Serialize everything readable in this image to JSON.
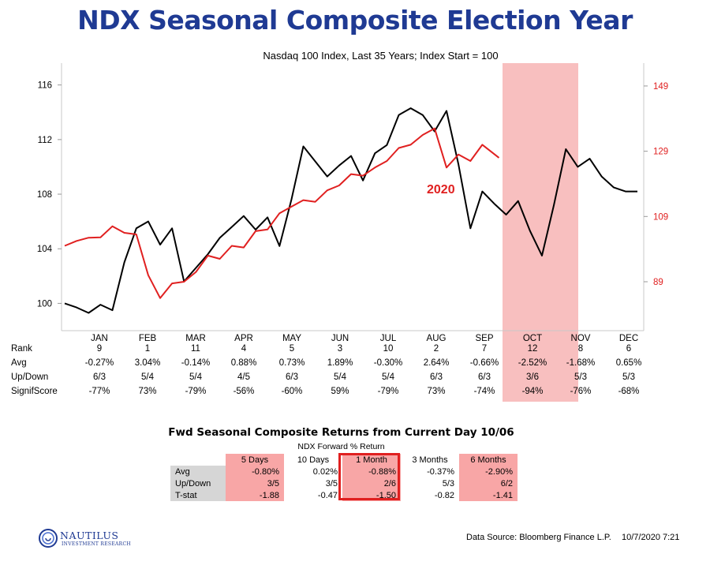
{
  "chart_data": {
    "type": "line",
    "title": "NDX Seasonal Composite Election Year",
    "subtitle": "Nasdaq 100 Index, Last 35 Years; Index Start = 100",
    "xlabel": "",
    "ylabel": "",
    "months": [
      "JAN",
      "FEB",
      "MAR",
      "APR",
      "MAY",
      "JUN",
      "JUL",
      "AUG",
      "SEP",
      "OCT",
      "NOV",
      "DEC"
    ],
    "highlight_month": "OCT",
    "annotation": "2020",
    "y_left": {
      "ylim": [
        98,
        117.6
      ],
      "ticks": [
        100,
        104,
        108,
        112,
        116
      ]
    },
    "y_right": {
      "ylim": [
        74,
        156
      ],
      "ticks": [
        89,
        109,
        129,
        149
      ],
      "color": "#e02020"
    },
    "series": [
      {
        "color": "#000000",
        "axis": "left",
        "x": [
          0,
          0.25,
          0.5,
          0.75,
          1,
          1.25,
          1.5,
          1.75,
          2,
          2.25,
          2.5,
          2.75,
          3,
          3.25,
          3.5,
          3.75,
          4,
          4.25,
          4.5,
          4.75,
          5,
          5.25,
          5.5,
          5.75,
          6,
          6.25,
          6.5,
          6.75,
          7,
          7.25,
          7.5,
          7.75,
          8,
          8.25,
          8.5,
          8.75,
          9,
          9.25,
          9.5,
          9.75,
          10,
          10.25,
          10.5,
          10.75,
          11,
          11.25,
          11.5,
          11.75,
          12
        ],
        "values": [
          100.0,
          99.7,
          99.3,
          99.9,
          99.5,
          103.0,
          105.5,
          106.0,
          104.3,
          105.5,
          101.6,
          102.6,
          103.6,
          104.8,
          105.6,
          106.4,
          105.4,
          106.3,
          104.2,
          107.6,
          111.5,
          110.4,
          109.3,
          110.1,
          110.8,
          109.0,
          111.0,
          111.6,
          113.8,
          114.3,
          113.8,
          112.6,
          114.1,
          110.2,
          105.5,
          108.2,
          107.3,
          106.5,
          107.5,
          105.3,
          103.5,
          107.2,
          111.3,
          110.0,
          110.6,
          109.3,
          108.5,
          108.2,
          108.2
        ]
      },
      {
        "color": "#e02020",
        "axis": "right",
        "x": [
          0,
          0.25,
          0.5,
          0.75,
          1,
          1.25,
          1.5,
          1.75,
          2,
          2.25,
          2.5,
          2.75,
          3,
          3.25,
          3.5,
          3.75,
          4,
          4.25,
          4.5,
          4.75,
          5,
          5.25,
          5.5,
          5.75,
          6,
          6.25,
          6.5,
          6.75,
          7,
          7.25,
          7.5,
          7.75,
          8,
          8.25,
          8.5,
          8.75,
          9.1
        ],
        "values": [
          100,
          101.5,
          102.5,
          102.6,
          106,
          104,
          103.5,
          91,
          84,
          88.5,
          89,
          92,
          97,
          96,
          100,
          99.5,
          104.5,
          105,
          110,
          112,
          114,
          113.5,
          117,
          118.5,
          122,
          121.5,
          124,
          126,
          130,
          131,
          134,
          136,
          124,
          128,
          126,
          131,
          127
        ]
      }
    ],
    "stats_table": {
      "rows": [
        {
          "label": "Rank",
          "values": [
            "9",
            "1",
            "11",
            "4",
            "5",
            "3",
            "10",
            "2",
            "7",
            "12",
            "8",
            "6"
          ]
        },
        {
          "label": "Avg",
          "values": [
            "-0.27%",
            "3.04%",
            "-0.14%",
            "0.88%",
            "0.73%",
            "1.89%",
            "-0.30%",
            "2.64%",
            "-0.66%",
            "-2.52%",
            "-1.68%",
            "0.65%"
          ]
        },
        {
          "label": "Up/Down",
          "values": [
            "6/3",
            "5/4",
            "5/4",
            "4/5",
            "6/3",
            "5/4",
            "5/4",
            "6/3",
            "6/3",
            "3/6",
            "5/3",
            "5/3"
          ]
        },
        {
          "label": "SignifScore",
          "values": [
            "-77%",
            "73%",
            "-79%",
            "-56%",
            "-60%",
            "59%",
            "-79%",
            "73%",
            "-74%",
            "-94%",
            "-76%",
            "-68%"
          ]
        }
      ]
    }
  },
  "fwd_table": {
    "title": "Fwd Seasonal Composite Returns from Current Day 10/06",
    "subtitle": "NDX Forward % Return",
    "columns": [
      "5 Days",
      "10 Days",
      "1 Month",
      "3 Months",
      "6 Months"
    ],
    "highlight_columns": [
      true,
      false,
      true,
      false,
      true
    ],
    "boxed_column": "1 Month",
    "rows": [
      {
        "label": "Avg",
        "values": [
          "-0.80%",
          "0.02%",
          "-0.88%",
          "-0.37%",
          "-2.90%"
        ]
      },
      {
        "label": "Up/Down",
        "values": [
          "3/5",
          "3/5",
          "2/6",
          "5/3",
          "6/2"
        ]
      },
      {
        "label": "T-stat",
        "values": [
          "-1.88",
          "-0.47",
          "-1.50",
          "-0.82",
          "-1.41"
        ]
      }
    ]
  },
  "footer": {
    "logo_name": "NAUTILUS",
    "logo_tagline": "INVESTMENT RESEARCH",
    "source": "Data Source: Bloomberg Finance L.P.",
    "timestamp": "10/7/2020 7:21"
  },
  "colors": {
    "title": "#1f3a93",
    "highlight": "#f8bfbf",
    "accent": "#e02020"
  }
}
